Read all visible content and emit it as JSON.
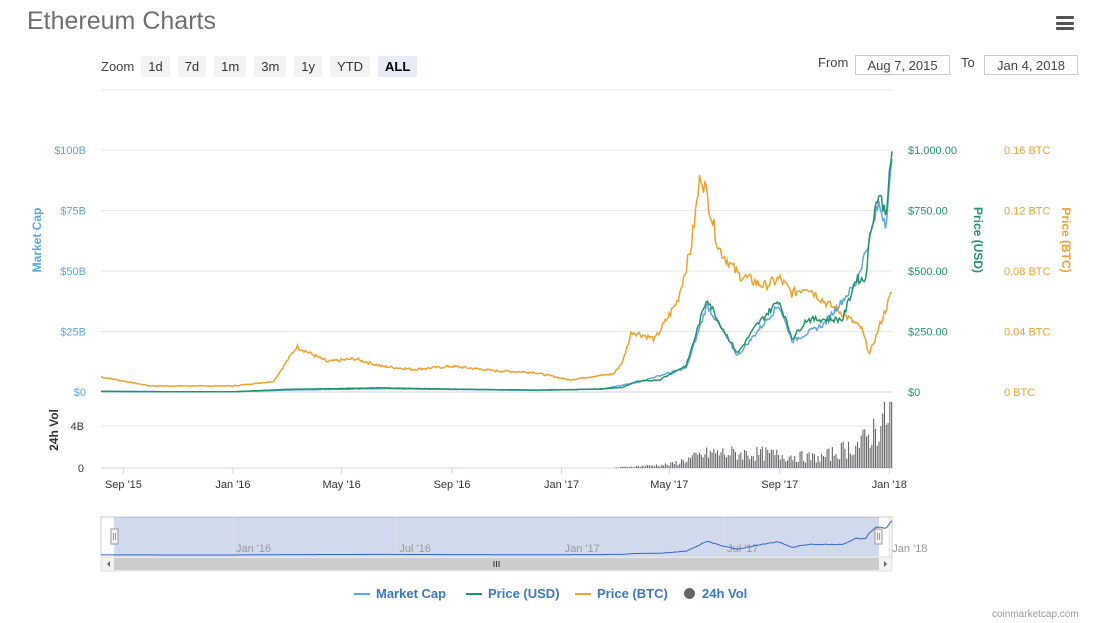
{
  "header": {
    "title": "Ethereum Charts"
  },
  "toolbar": {
    "zoom_label": "Zoom",
    "zoom_buttons": [
      "1d",
      "7d",
      "1m",
      "3m",
      "1y",
      "YTD",
      "ALL"
    ],
    "active_zoom": "ALL",
    "from_label": "From",
    "from_value": "Aug 7, 2015",
    "to_label": "To",
    "to_value": "Jan 4, 2018"
  },
  "colors": {
    "market_cap": "#5aa7e2",
    "price_usd": "#23936e",
    "price_btc": "#f0a22f",
    "volume": "#666666",
    "legend_text": "#3b78c7"
  },
  "legend": {
    "market_cap": "Market Cap",
    "price_usd": "Price (USD)",
    "price_btc": "Price (BTC)",
    "volume": "24h Vol"
  },
  "footer": {
    "credit": "coinmarketcap.com"
  },
  "chart_data": {
    "type": "line",
    "title": "Ethereum Charts",
    "x_ticks": [
      "Sep '15",
      "Jan '16",
      "May '16",
      "Sep '16",
      "Jan '17",
      "May '17",
      "Sep '17",
      "Jan '18"
    ],
    "axes": {
      "market_cap": {
        "label": "Market Cap",
        "ticks": [
          "$0",
          "$25B",
          "$50B",
          "$75B",
          "$100B"
        ],
        "range": [
          0,
          100
        ]
      },
      "price_usd": {
        "label": "Price (USD)",
        "ticks": [
          "$0",
          "$250.00",
          "$500.00",
          "$750.00",
          "$1,000.00"
        ],
        "range": [
          0,
          1000
        ]
      },
      "price_btc": {
        "label": "Price (BTC)",
        "ticks": [
          "0 BTC",
          "0.04 BTC",
          "0.08 BTC",
          "0.12 BTC",
          "0.16 BTC"
        ],
        "range": [
          0,
          0.16
        ]
      },
      "volume": {
        "label": "24h Vol",
        "ticks": [
          "0",
          "4B"
        ]
      }
    },
    "grid": true,
    "legend_position": "bottom",
    "series": [
      {
        "name": "Price (USD)",
        "x": [
          "2015-08-07",
          "2015-11-01",
          "2016-01-01",
          "2016-03-01",
          "2016-06-15",
          "2016-09-01",
          "2016-12-01",
          "2017-01-15",
          "2017-02-15",
          "2017-03-10",
          "2017-03-25",
          "2017-04-20",
          "2017-05-20",
          "2017-06-12",
          "2017-06-25",
          "2017-07-16",
          "2017-08-05",
          "2017-08-31",
          "2017-09-15",
          "2017-10-01",
          "2017-10-20",
          "2017-11-10",
          "2017-11-25",
          "2017-12-05",
          "2017-12-12",
          "2017-12-20",
          "2017-12-28",
          "2018-01-04"
        ],
        "values": [
          2.8,
          0.9,
          0.95,
          11,
          17,
          12,
          8,
          10,
          13,
          19,
          43,
          50,
          110,
          390,
          290,
          160,
          270,
          380,
          220,
          300,
          300,
          300,
          470,
          460,
          690,
          820,
          740,
          980
        ]
      },
      {
        "name": "Price (BTC)",
        "x": [
          "2015-08-07",
          "2015-10-01",
          "2016-01-01",
          "2016-02-15",
          "2016-03-12",
          "2016-04-15",
          "2016-05-15",
          "2016-06-15",
          "2016-07-20",
          "2016-09-01",
          "2016-10-20",
          "2016-12-01",
          "2017-01-10",
          "2017-02-01",
          "2017-02-28",
          "2017-03-10",
          "2017-03-20",
          "2017-04-15",
          "2017-05-10",
          "2017-05-25",
          "2017-06-05",
          "2017-06-12",
          "2017-06-25",
          "2017-07-16",
          "2017-08-15",
          "2017-09-01",
          "2017-09-15",
          "2017-10-01",
          "2017-10-20",
          "2017-11-10",
          "2017-12-01",
          "2017-12-10",
          "2017-12-25",
          "2018-01-04"
        ],
        "values": [
          0.01,
          0.004,
          0.004,
          0.007,
          0.03,
          0.02,
          0.022,
          0.017,
          0.015,
          0.017,
          0.014,
          0.013,
          0.008,
          0.01,
          0.012,
          0.02,
          0.04,
          0.035,
          0.06,
          0.095,
          0.145,
          0.13,
          0.095,
          0.078,
          0.07,
          0.075,
          0.065,
          0.07,
          0.06,
          0.052,
          0.042,
          0.025,
          0.05,
          0.066
        ]
      },
      {
        "name": "Market Cap",
        "x": [
          "2015-08-07",
          "2016-01-01",
          "2016-03-01",
          "2016-06-15",
          "2016-12-01",
          "2017-02-15",
          "2017-03-25",
          "2017-05-20",
          "2017-06-12",
          "2017-07-16",
          "2017-08-31",
          "2017-09-15",
          "2017-10-20",
          "2017-11-25",
          "2017-12-12",
          "2017-12-20",
          "2017-12-28",
          "2018-01-04"
        ],
        "values": [
          0.2,
          0.07,
          0.8,
          1.4,
          0.7,
          1.2,
          3.9,
          10,
          36,
          15,
          36,
          21,
          28,
          45,
          66,
          78,
          70,
          94
        ]
      },
      {
        "name": "24h Vol",
        "x": [
          "2017-03-01",
          "2017-05-01",
          "2017-06-15",
          "2017-08-15",
          "2017-10-15",
          "2017-12-01",
          "2017-12-22",
          "2018-01-04"
        ],
        "values": [
          0.05,
          0.35,
          1.5,
          1.4,
          1.0,
          2.5,
          4.5,
          6.0
        ]
      }
    ]
  }
}
